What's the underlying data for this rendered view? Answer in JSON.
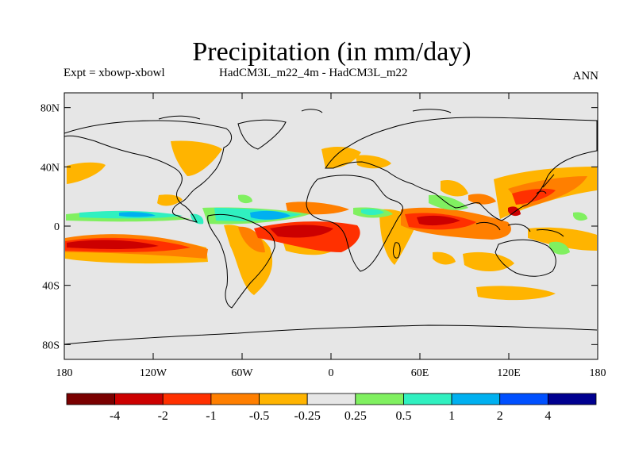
{
  "title": "Precipitation (in mm/day)",
  "experiment_label": "Expt = xbowp-xbowl",
  "comparison_label": "HadCM3L_m22_4m - HadCM3L_m22",
  "season_label": "ANN",
  "map": {
    "projection": "equirectangular",
    "lon_range": [
      -180,
      180
    ],
    "lat_range": [
      -90,
      90
    ],
    "background_color": "#e6e6e6",
    "x_ticks": [
      "180",
      "120W",
      "60W",
      "0",
      "60E",
      "120E",
      "180"
    ],
    "y_ticks": [
      "80N",
      "40N",
      "0",
      "40S",
      "80S"
    ],
    "tick_lons": [
      -180,
      -120,
      -60,
      0,
      60,
      120,
      180
    ],
    "tick_lats": [
      80,
      40,
      0,
      -40,
      -80
    ]
  },
  "colorbar": {
    "colors": [
      "#7a0000",
      "#cc0000",
      "#ff3000",
      "#ff7f00",
      "#ffb400",
      "#e6e6e6",
      "#80f060",
      "#30f0c0",
      "#00b0f0",
      "#0050ff",
      "#000090"
    ],
    "labels": [
      "-4",
      "-2",
      "-1",
      "-0.5",
      "-0.25",
      "0.25",
      "0.5",
      "1",
      "2",
      "4"
    ]
  }
}
